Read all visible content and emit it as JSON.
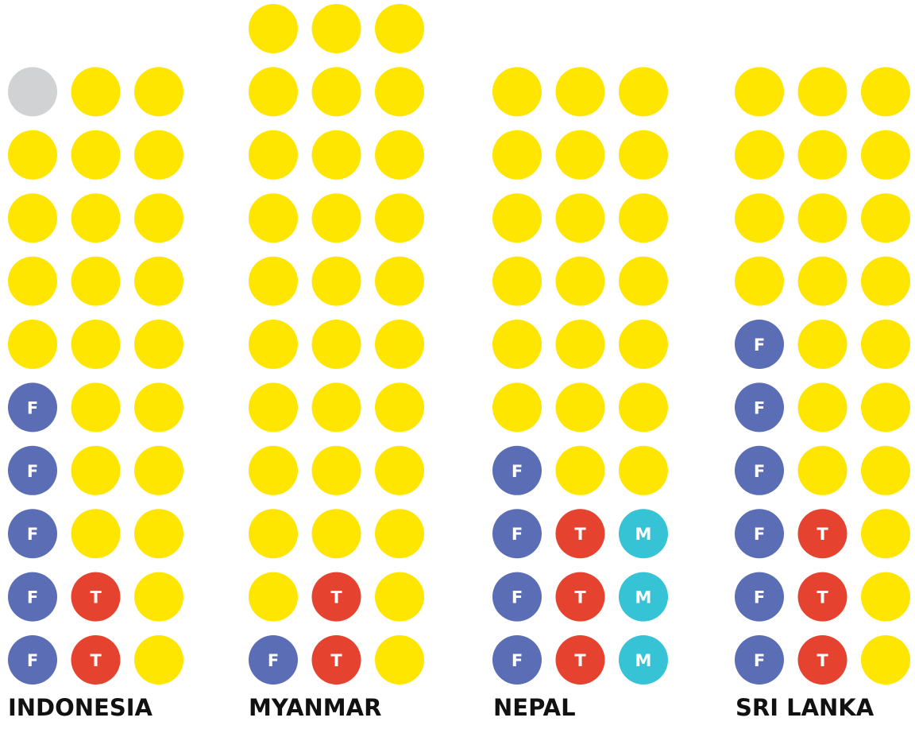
{
  "colors": {
    "F": "#5b6db5",
    "T": "#e5432f",
    "M": "#36c3d5",
    "dot": "#ffe600",
    "muted": "#d1d2d4"
  },
  "groups": [
    {
      "label": "INDONESIA",
      "muted_cells": [
        [
          0,
          0
        ]
      ],
      "rows": [
        [
          null,
          null,
          null
        ],
        [
          null,
          null,
          null
        ],
        [
          null,
          null,
          null
        ],
        [
          null,
          null,
          null
        ],
        [
          null,
          null,
          null
        ],
        [
          "F",
          null,
          null
        ],
        [
          "F",
          null,
          null
        ],
        [
          "F",
          null,
          null
        ],
        [
          "F",
          "T",
          null
        ],
        [
          "F",
          "T",
          null
        ]
      ]
    },
    {
      "label": "MYANMAR",
      "rows": [
        [
          null,
          null,
          null
        ],
        [
          null,
          null,
          null
        ],
        [
          null,
          null,
          null
        ],
        [
          null,
          null,
          null
        ],
        [
          null,
          null,
          null
        ],
        [
          null,
          null,
          null
        ],
        [
          null,
          null,
          null
        ],
        [
          null,
          null,
          null
        ],
        [
          null,
          null,
          null
        ],
        [
          null,
          "T",
          null
        ],
        [
          "F",
          "T",
          null
        ]
      ]
    },
    {
      "label": "NEPAL",
      "rows": [
        [
          null,
          null,
          null
        ],
        [
          null,
          null,
          null
        ],
        [
          null,
          null,
          null
        ],
        [
          null,
          null,
          null
        ],
        [
          null,
          null,
          null
        ],
        [
          null,
          null,
          null
        ],
        [
          "F",
          null,
          null
        ],
        [
          "F",
          "T",
          "M"
        ],
        [
          "F",
          "T",
          "M"
        ],
        [
          "F",
          "T",
          "M"
        ]
      ]
    },
    {
      "label": "SRI LANKA",
      "rows": [
        [
          null,
          null,
          null
        ],
        [
          null,
          null,
          null
        ],
        [
          null,
          null,
          null
        ],
        [
          null,
          null,
          null
        ],
        [
          "F",
          null,
          null
        ],
        [
          "F",
          null,
          null
        ],
        [
          "F",
          null,
          null
        ],
        [
          "F",
          "T",
          null
        ],
        [
          "F",
          "T",
          null
        ],
        [
          "F",
          "T",
          null
        ]
      ]
    }
  ]
}
